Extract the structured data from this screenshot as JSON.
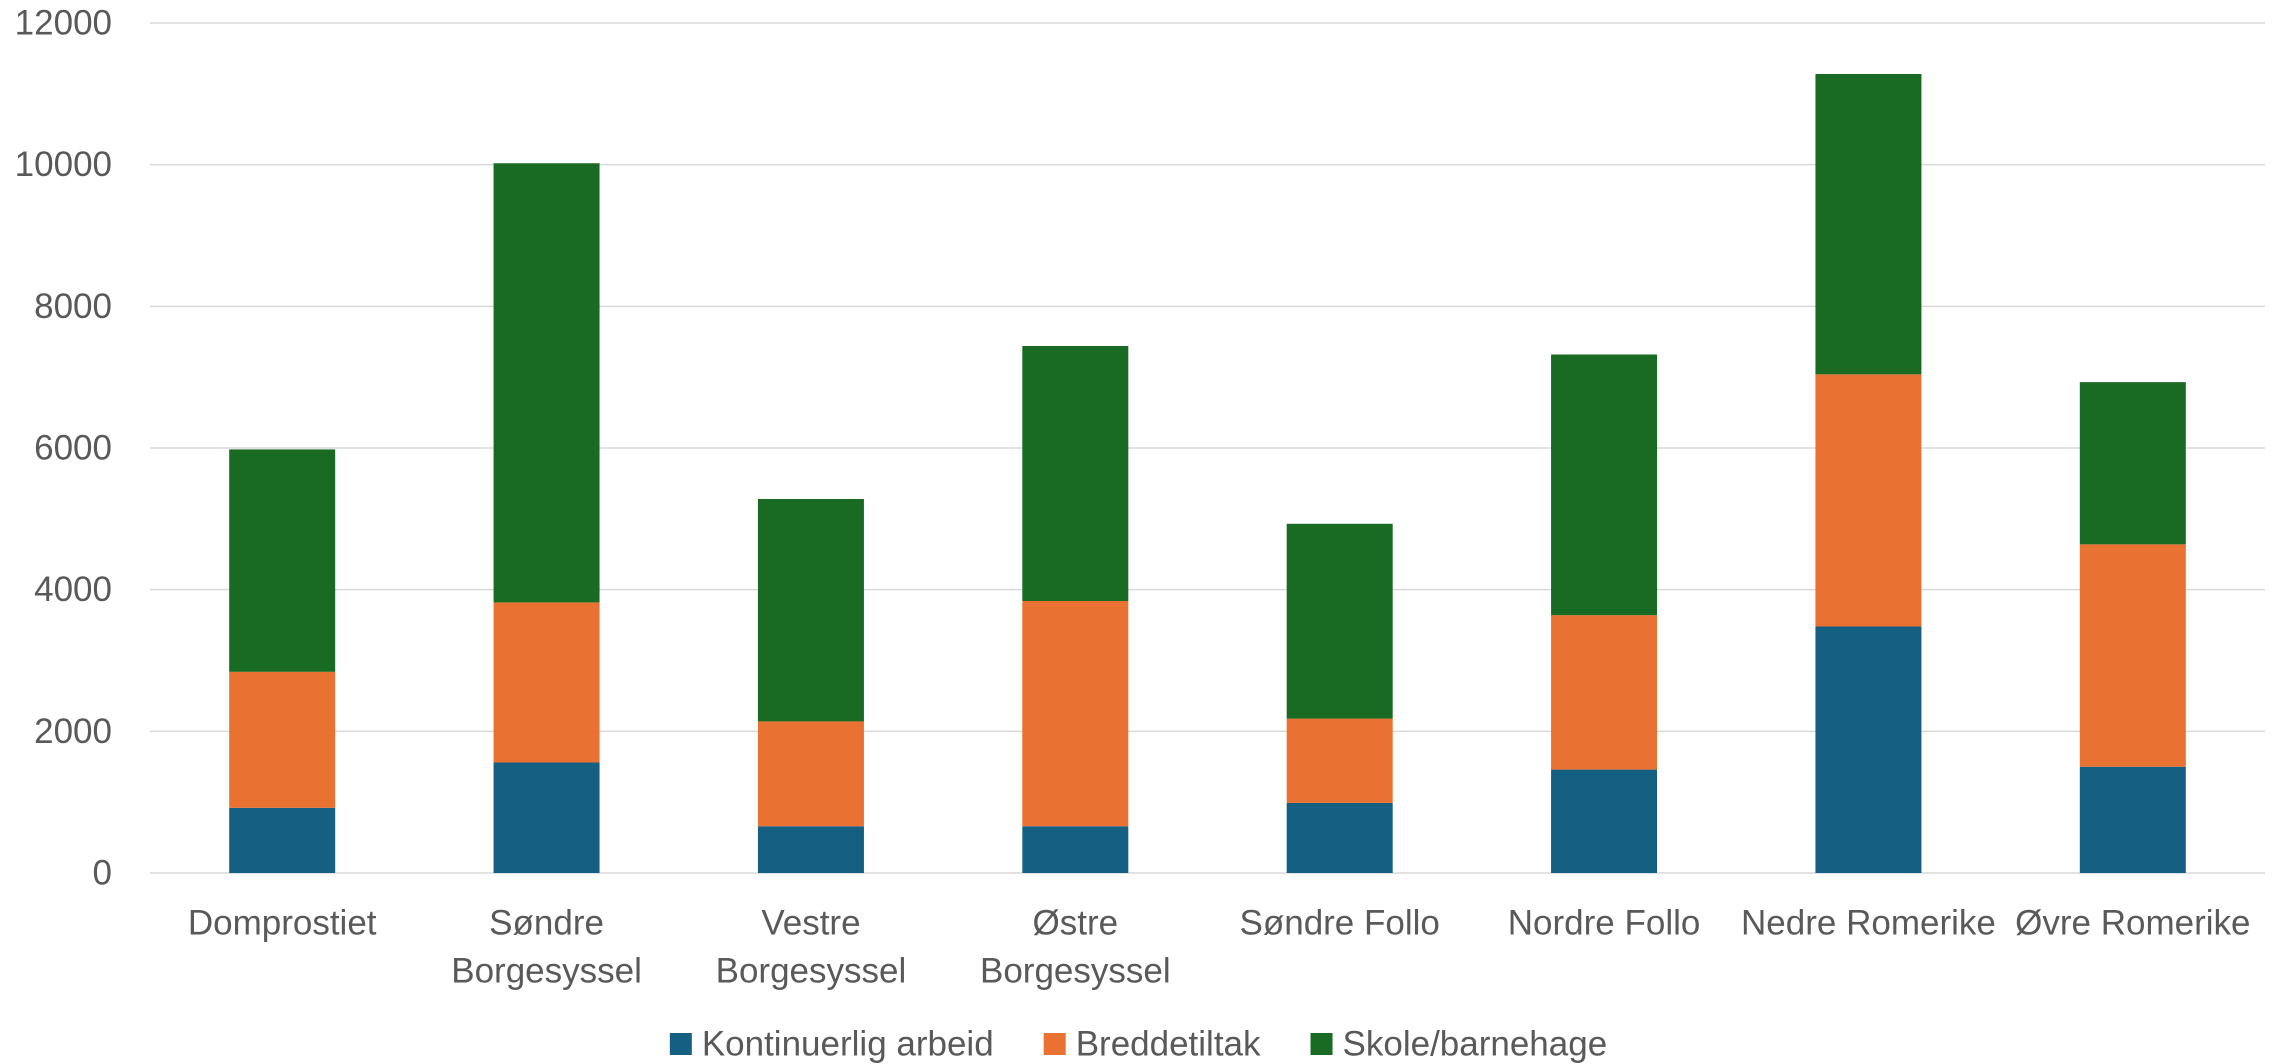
{
  "chart_data": {
    "type": "bar",
    "stacked": true,
    "title": "",
    "xlabel": "",
    "ylabel": "",
    "categories": [
      [
        "Domprostiet"
      ],
      [
        "Søndre",
        "Borgesyssel"
      ],
      [
        "Vestre",
        "Borgesyssel"
      ],
      [
        "Østre",
        "Borgesyssel"
      ],
      [
        "Søndre Follo"
      ],
      [
        "Nordre Follo"
      ],
      [
        "Nedre Romerike"
      ],
      [
        "Øvre Romerike"
      ]
    ],
    "series": [
      {
        "name": "Kontinuerlig arbeid",
        "color": "#156082",
        "values": [
          920,
          1560,
          660,
          660,
          990,
          1460,
          3480,
          1500
        ]
      },
      {
        "name": "Breddetiltak",
        "color": "#E97132",
        "values": [
          1920,
          2260,
          1480,
          3180,
          1190,
          2180,
          3560,
          3140
        ]
      },
      {
        "name": "Skole/barnehage",
        "color": "#196B24",
        "values": [
          3140,
          6200,
          3140,
          3600,
          2750,
          3680,
          4240,
          2290
        ]
      }
    ],
    "ylim": [
      0,
      12000
    ],
    "yticks": [
      "0",
      "2000",
      "4000",
      "6000",
      "8000",
      "10000",
      "12000"
    ],
    "grid": true,
    "gridColor": "#d9d9d9",
    "legend": "bottom"
  }
}
